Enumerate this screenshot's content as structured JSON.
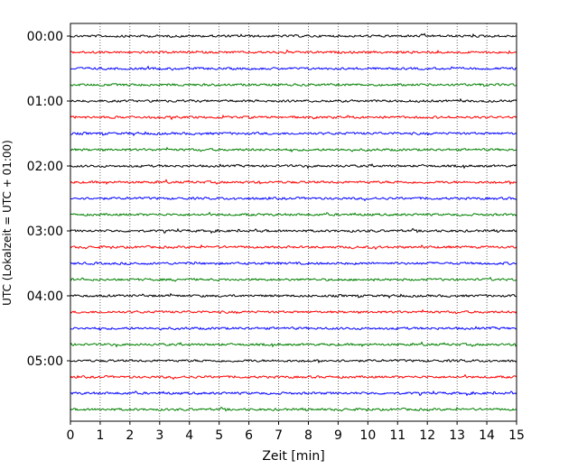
{
  "chart_data": {
    "type": "line",
    "xlabel": "Zeit  [min]",
    "ylabel": "UTC (Lokalzeit = UTC + 01:00)",
    "xlim": [
      0,
      15
    ],
    "x_ticks": [
      "0",
      "1",
      "2",
      "3",
      "4",
      "5",
      "6",
      "7",
      "8",
      "9",
      "10",
      "11",
      "12",
      "13",
      "14",
      "15"
    ],
    "y_ticks": [
      "00:00",
      "01:00",
      "02:00",
      "03:00",
      "04:00",
      "05:00"
    ],
    "grid": "vertical dotted at each minute",
    "trace_colors": [
      "#000000",
      "#ff0000",
      "#0000ff",
      "#008000"
    ],
    "traces": [
      {
        "time": "00:00"
      },
      {
        "time": "00:15"
      },
      {
        "time": "00:30"
      },
      {
        "time": "00:45"
      },
      {
        "time": "01:00"
      },
      {
        "time": "01:15"
      },
      {
        "time": "01:30"
      },
      {
        "time": "01:45"
      },
      {
        "time": "02:00"
      },
      {
        "time": "02:15"
      },
      {
        "time": "02:30"
      },
      {
        "time": "02:45"
      },
      {
        "time": "03:00"
      },
      {
        "time": "03:15"
      },
      {
        "time": "03:30"
      },
      {
        "time": "03:45"
      },
      {
        "time": "04:00"
      },
      {
        "time": "04:15"
      },
      {
        "time": "04:30"
      },
      {
        "time": "04:45"
      },
      {
        "time": "05:00"
      },
      {
        "time": "05:15"
      },
      {
        "time": "05:30"
      },
      {
        "time": "05:45"
      }
    ]
  }
}
